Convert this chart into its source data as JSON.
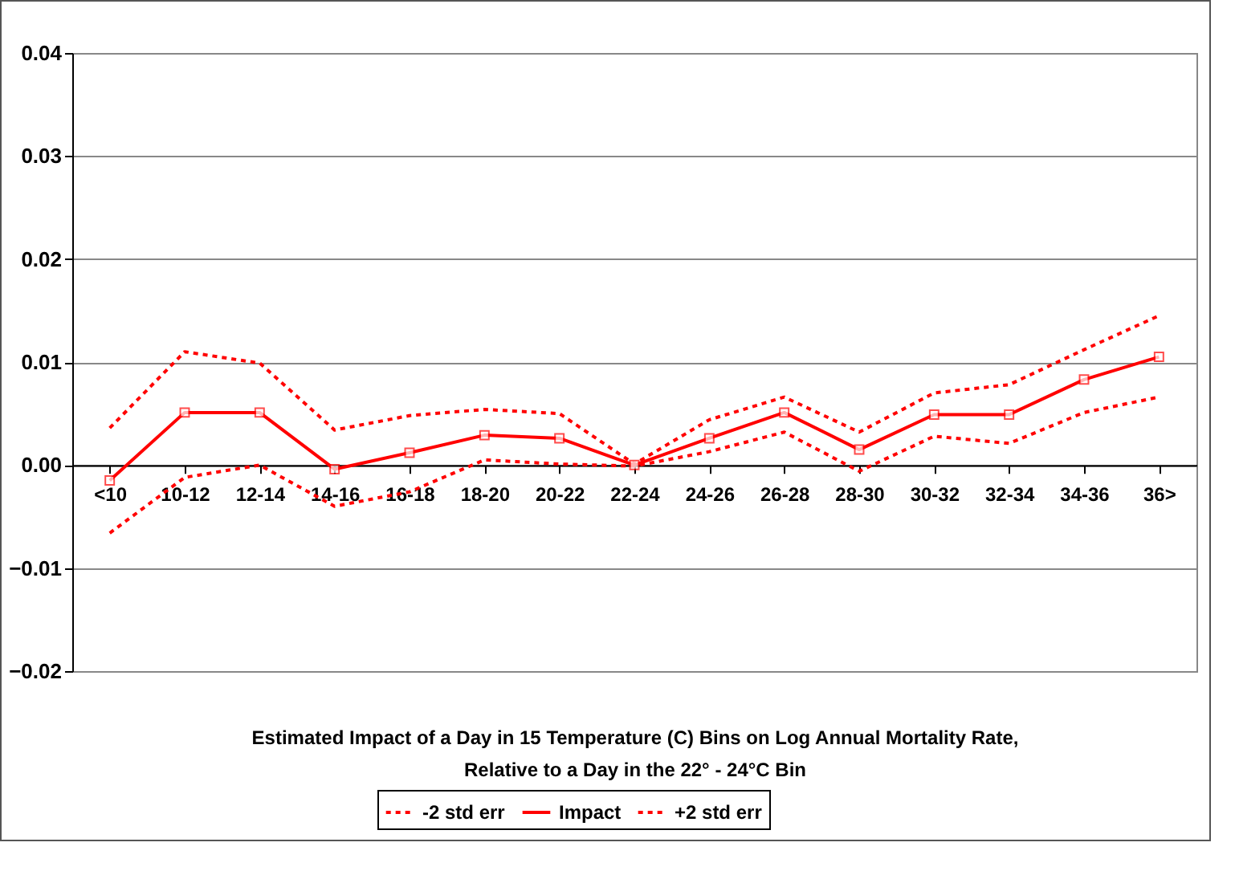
{
  "chart_data": {
    "type": "line",
    "xlabel": "Estimated Impact of a Day in 15 Temperature (C) Bins on Log Annual Mortality Rate,\nRelative to a Day in the 22° - 24°C Bin",
    "categories": [
      "<10",
      "10-12",
      "12-14",
      "14-16",
      "16-18",
      "18-20",
      "20-22",
      "22-24",
      "24-26",
      "26-28",
      "28-30",
      "30-32",
      "32-34",
      "34-36",
      "36>"
    ],
    "series": [
      {
        "name": "-2 std err",
        "color": "#ff0000",
        "line_style": "dotted",
        "marker": "none",
        "values": [
          -0.0066,
          -0.0012,
          0.0,
          -0.004,
          -0.0026,
          0.0005,
          0.0001,
          -0.0001,
          0.0013,
          0.0032,
          -0.0006,
          0.0028,
          0.0021,
          0.0051,
          0.0066
        ]
      },
      {
        "name": "Impact",
        "color": "#ff0000",
        "line_style": "solid",
        "marker": "square",
        "values": [
          -0.0015,
          0.0051,
          0.0051,
          -0.0004,
          0.0012,
          0.0029,
          0.0026,
          0.0,
          0.0026,
          0.0051,
          0.0015,
          0.0049,
          0.0049,
          0.0083,
          0.0105
        ]
      },
      {
        "name": "+2 std err",
        "color": "#ff0000",
        "line_style": "dotted",
        "marker": "none",
        "values": [
          0.0036,
          0.011,
          0.0099,
          0.0034,
          0.0048,
          0.0054,
          0.005,
          0.0001,
          0.0044,
          0.0066,
          0.0032,
          0.007,
          0.0078,
          0.0112,
          0.0145
        ]
      }
    ],
    "ylim": [
      -0.02,
      0.04
    ],
    "yticks": [
      -0.02,
      -0.01,
      {
        "value": 0,
        "label": "0.00"
      },
      0.01,
      0.02,
      0.03,
      0.04
    ],
    "grid": "y",
    "legend": "bottom"
  }
}
